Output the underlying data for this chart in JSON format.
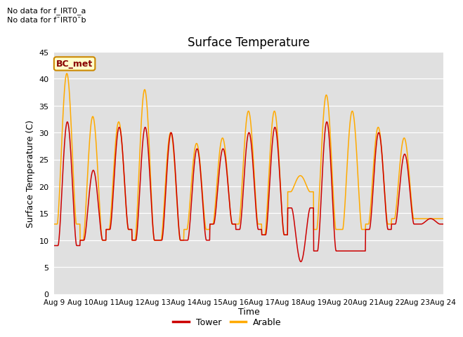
{
  "title": "Surface Temperature",
  "xlabel": "Time",
  "ylabel": "Surface Temperature (C)",
  "ylim": [
    0,
    45
  ],
  "yticks": [
    0,
    5,
    10,
    15,
    20,
    25,
    30,
    35,
    40,
    45
  ],
  "plot_bg_color": "#e0e0e0",
  "tower_color": "#cc0000",
  "arable_color": "#ffaa00",
  "text_above_1": "No data for f_IRT0_a",
  "text_above_2": "No data for f¯IRT0¯b",
  "bc_met_label": "BC_met",
  "legend_entries": [
    "Tower",
    "Arable"
  ],
  "x_tick_labels": [
    "Aug 9",
    "Aug 10",
    "Aug 11",
    "Aug 12",
    "Aug 13",
    "Aug 14",
    "Aug 15",
    "Aug 16",
    "Aug 17",
    "Aug 18",
    "Aug 19",
    "Aug 20",
    "Aug 21",
    "Aug 22",
    "Aug 23",
    "Aug 24"
  ],
  "n_days": 15,
  "peak_tower": [
    32,
    23,
    31,
    31,
    30,
    27,
    27,
    30,
    31,
    6,
    32,
    8,
    30,
    26,
    14
  ],
  "peak_arable": [
    41,
    33,
    32,
    38,
    30,
    28,
    29,
    34,
    34,
    22,
    37,
    34,
    31,
    29,
    14
  ],
  "min_tower": [
    9,
    10,
    12,
    10,
    10,
    10,
    13,
    12,
    11,
    16,
    8,
    8,
    12,
    13,
    13
  ],
  "min_arable": [
    13,
    10,
    12,
    10,
    10,
    12,
    13,
    13,
    11,
    19,
    12,
    12,
    13,
    14,
    14
  ]
}
